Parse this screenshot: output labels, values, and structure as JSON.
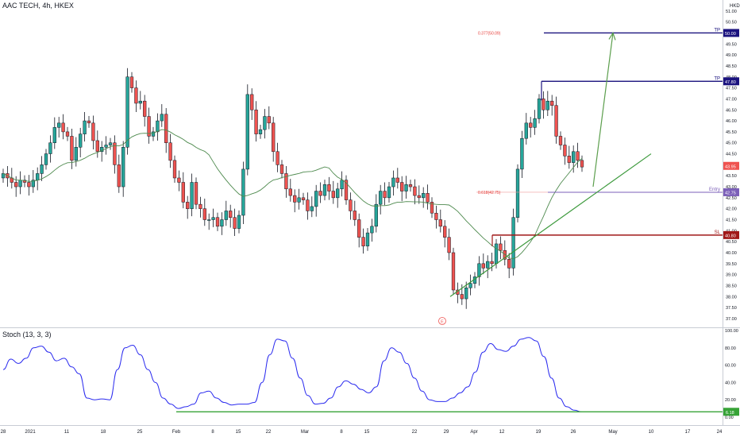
{
  "header": {
    "symbol": "AAC TECH, 4h, HKEX",
    "currency": "HKD"
  },
  "stoch": {
    "label": "Stoch (13, 3, 3)"
  },
  "colors": {
    "up": "#26a69a",
    "down": "#ef5350",
    "candle_border": "#131722",
    "ma": "#4e8a4e",
    "trendline": "#3d9a3d",
    "arrow": "#5b9e4c",
    "tp": "#1a127e",
    "entry": "#7b5fb8",
    "sl": "#a01818",
    "stoch_line": "#2a2aef",
    "stoch_base": "#37a337",
    "last_price": "#ef5350"
  },
  "chart_data": [
    {
      "type": "candlestick",
      "title": "AAC TECH, 4h, HKEX",
      "ylim": [
        36.6,
        51.5
      ],
      "y_ticks": [
        "37.00",
        "37.50",
        "38.00",
        "38.50",
        "39.00",
        "39.50",
        "40.00",
        "40.50",
        "41.00",
        "41.50",
        "42.00",
        "42.50",
        "43.00",
        "43.50",
        "44.00",
        "44.50",
        "45.00",
        "45.50",
        "46.00",
        "46.50",
        "47.00",
        "47.50",
        "48.00",
        "48.50",
        "49.00",
        "49.50",
        "50.00",
        "50.50",
        "51.00"
      ],
      "x_ticks": [
        "28",
        "2021",
        "11",
        "18",
        "25",
        "Feb",
        "8",
        "15",
        "22",
        "Mar",
        "8",
        "15",
        "22",
        "29",
        "Apr",
        "12",
        "19",
        "26",
        "May",
        "10",
        "17",
        "24"
      ],
      "closes": [
        43.6,
        43.4,
        43.2,
        43.0,
        43.3,
        43.2,
        43.0,
        43.3,
        43.6,
        44.0,
        44.5,
        45.0,
        45.7,
        45.9,
        45.5,
        45.3,
        44.2,
        44.8,
        45.4,
        46.0,
        45.9,
        45.1,
        44.6,
        44.8,
        44.9,
        45.0,
        44.0,
        43.0,
        44.8,
        48.0,
        47.5,
        46.8,
        46.9,
        46.2,
        45.3,
        45.5,
        46.0,
        46.3,
        45.0,
        44.2,
        43.4,
        43.2,
        42.3,
        42.0,
        43.2,
        42.2,
        42.0,
        41.5,
        41.5,
        41.6,
        41.2,
        41.5,
        41.9,
        41.6,
        41.1,
        41.7,
        43.8,
        47.2,
        46.5,
        45.4,
        45.6,
        46.2,
        45.9,
        44.6,
        44.0,
        43.6,
        42.9,
        42.6,
        42.3,
        42.5,
        42.4,
        41.9,
        42.1,
        42.8,
        42.6,
        43.1,
        42.8,
        42.5,
        42.9,
        43.3,
        42.4,
        41.9,
        41.5,
        40.7,
        40.3,
        40.9,
        41.2,
        42.2,
        42.8,
        42.5,
        43.0,
        43.4,
        43.2,
        42.8,
        43.1,
        43.0,
        42.6,
        42.5,
        42.7,
        42.3,
        41.8,
        41.5,
        41.2,
        40.7,
        40.0,
        38.3,
        38.1,
        37.9,
        38.4,
        38.6,
        38.9,
        39.5,
        39.3,
        39.6,
        39.5,
        40.4,
        40.1,
        39.7,
        39.3,
        41.6,
        43.8,
        45.2,
        45.9,
        45.7,
        46.1,
        47.0,
        46.5,
        46.9,
        46.7,
        45.3,
        44.9,
        44.4,
        44.1,
        44.6,
        44.2,
        43.9
      ],
      "ma_end_value": 43.1,
      "last_price": {
        "value": "43.95",
        "label": "43.95"
      },
      "levels": [
        {
          "name": "TP",
          "value": "50.00",
          "note": "0.377(50.09)"
        },
        {
          "name": "TP",
          "value": "47.80"
        },
        {
          "name": "Entry",
          "value": "42.75",
          "note": "0.618(42.75)"
        },
        {
          "name": "SL",
          "value": "40.80"
        }
      ],
      "fib_labels": [
        "0.377(50.09)",
        "0.618(42.75)"
      ],
      "trendline": {
        "from": {
          "date": "2021-03-29",
          "value": 38.0
        },
        "to": {
          "date": "2021-05-10",
          "value": 44.5
        }
      },
      "projection_arrow": {
        "from_value": 43.0,
        "to_value": 50.0
      },
      "marker": "E"
    },
    {
      "type": "line",
      "title": "Stoch (13, 3, 3)",
      "ylim": [
        0,
        100
      ],
      "y_ticks": [
        "0.00",
        "20.00",
        "40.00",
        "60.00",
        "80.00",
        "100.00"
      ],
      "series": [
        {
          "values": [
            55,
            67,
            62,
            68,
            80,
            82,
            75,
            65,
            68,
            58,
            50,
            22,
            20,
            21,
            20,
            55,
            80,
            83,
            72,
            55,
            40,
            22,
            15,
            10,
            12,
            15,
            28,
            30,
            22,
            17,
            14,
            15,
            15,
            17,
            40,
            72,
            90,
            88,
            68,
            45,
            25,
            15,
            16,
            22,
            35,
            42,
            38,
            32,
            28,
            35,
            65,
            80,
            75,
            62,
            45,
            30,
            20,
            18,
            18,
            22,
            28,
            35,
            52,
            75,
            85,
            78,
            76,
            82,
            90,
            92,
            88,
            70,
            45,
            22,
            12,
            8,
            6
          ],
          "last_label": "6.18"
        }
      ],
      "baseline_value": "6.18"
    }
  ]
}
